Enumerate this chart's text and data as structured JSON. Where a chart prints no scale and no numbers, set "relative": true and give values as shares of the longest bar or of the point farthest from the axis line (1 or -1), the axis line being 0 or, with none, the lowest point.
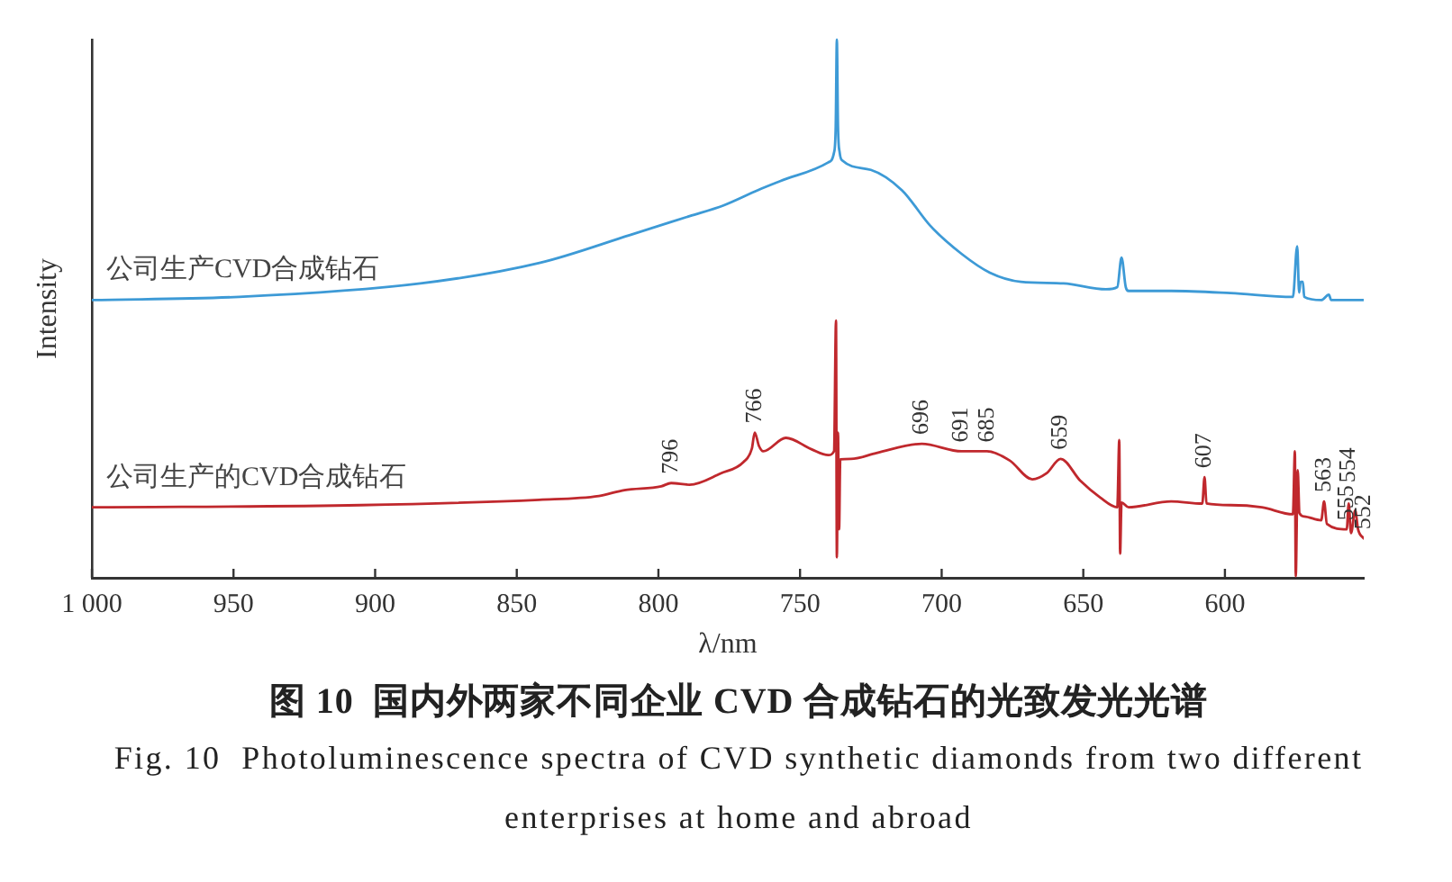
{
  "chart_data": {
    "type": "line",
    "title": "图 10  国内外两家不同企业 CVD 合成钻石的光致发光光谱",
    "subtitle": "Fig. 10  Photoluminescence spectra of CVD synthetic diamonds from two different enterprises at home and abroad",
    "xlabel": "λ/nm",
    "ylabel": "Intensity",
    "relative": true,
    "xlim": [
      1000,
      551
    ],
    "xticks": [
      {
        "value": 1000,
        "label": "1 000"
      },
      950,
      900,
      850,
      800,
      750,
      700,
      650,
      600
    ],
    "series": [
      {
        "name": "公司生产CVD合成钻石",
        "color": "#3d9ad6",
        "x": [
          1000,
          948,
          884,
          842,
          810,
          789,
          777,
          765,
          757,
          740,
          738,
          737.4,
          737,
          736.6,
          736,
          735,
          725,
          714,
          704,
          693,
          683,
          672,
          657,
          642,
          638,
          636.5,
          635,
          634,
          619,
          598,
          576,
          574.5,
          573.8,
          573.3,
          572.5,
          572,
          566,
          563.3,
          562.5,
          551
        ],
        "values": [
          0.516,
          0.522,
          0.547,
          0.585,
          0.637,
          0.672,
          0.692,
          0.72,
          0.737,
          0.772,
          0.79,
          0.84,
          1.0,
          0.84,
          0.79,
          0.775,
          0.758,
          0.72,
          0.654,
          0.602,
          0.567,
          0.55,
          0.547,
          0.536,
          0.54,
          0.595,
          0.54,
          0.533,
          0.533,
          0.529,
          0.522,
          0.616,
          0.53,
          0.55,
          0.55,
          0.522,
          0.516,
          0.526,
          0.516,
          0.516
        ]
      },
      {
        "name": "公司生产的CVD合成钻石",
        "color": "#c0282d",
        "x": [
          1000,
          905,
          842,
          821,
          812,
          799,
          795.5,
          789,
          778,
          770,
          767,
          766,
          764.5,
          763,
          755,
          746,
          740,
          738,
          737.3,
          737,
          736.6,
          736.2,
          735.8,
          732,
          723,
          707,
          693,
          684,
          676,
          668,
          663,
          658,
          651,
          644,
          638,
          637.3,
          637,
          636.5,
          634,
          619,
          608,
          607.2,
          606.5,
          598,
          587,
          576,
          575.3,
          575,
          574.3,
          573.7,
          572,
          566,
          565,
          564,
          557,
          556.3,
          555.5,
          554,
          553,
          551
        ],
        "values": [
          0.131,
          0.135,
          0.145,
          0.152,
          0.163,
          0.17,
          0.176,
          0.173,
          0.194,
          0.215,
          0.24,
          0.27,
          0.245,
          0.235,
          0.26,
          0.239,
          0.228,
          0.235,
          0.478,
          0.038,
          0.27,
          0.09,
          0.22,
          0.221,
          0.232,
          0.249,
          0.235,
          0.235,
          0.218,
          0.183,
          0.194,
          0.221,
          0.18,
          0.149,
          0.131,
          0.256,
          0.045,
          0.14,
          0.131,
          0.142,
          0.138,
          0.187,
          0.138,
          0.135,
          0.131,
          0.118,
          0.235,
          0.003,
          0.2,
          0.12,
          0.114,
          0.107,
          0.142,
          0.1,
          0.09,
          0.138,
          0.083,
          0.125,
          0.09,
          0.073
        ]
      }
    ],
    "annotations": [
      {
        "text": "796",
        "x": 795.5,
        "y": 0.176
      },
      {
        "text": "766",
        "x": 766,
        "y": 0.27
      },
      {
        "text": "696",
        "x": 707,
        "y": 0.249
      },
      {
        "text": "691",
        "x": 693,
        "y": 0.235
      },
      {
        "text": "685",
        "x": 684,
        "y": 0.235
      },
      {
        "text": "659",
        "x": 658,
        "y": 0.221
      },
      {
        "text": "607",
        "x": 607.2,
        "y": 0.187
      },
      {
        "text": "563",
        "x": 565,
        "y": 0.142
      },
      {
        "text": "555",
        "x": 557,
        "y": 0.09
      },
      {
        "text": "554",
        "x": 556.3,
        "y": 0.138
      },
      {
        "text": "552",
        "x": 551,
        "y": 0.073
      }
    ]
  }
}
